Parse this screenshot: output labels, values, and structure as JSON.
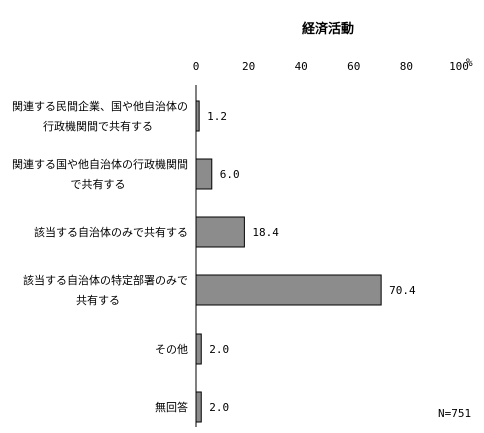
{
  "chart_data": {
    "type": "bar",
    "orientation": "horizontal",
    "title": "経済活動",
    "unit": "%",
    "xlim": [
      0,
      100
    ],
    "ticks": [
      0,
      20,
      40,
      60,
      80,
      100
    ],
    "categories": [
      [
        "関連する民間企業、国や他自治体の",
        "行政機関間で共有する"
      ],
      [
        "関連する国や他自治体の行政機関間",
        "で共有する"
      ],
      [
        "該当する自治体のみで共有する"
      ],
      [
        "該当する自治体の特定部署のみで",
        "共有する"
      ],
      [
        "その他"
      ],
      [
        "無回答"
      ]
    ],
    "values": [
      1.2,
      6.0,
      18.4,
      70.4,
      2.0,
      2.0
    ],
    "value_labels": [
      "1.2",
      "6.0",
      "18.4",
      "70.4",
      "2.0",
      "2.0"
    ],
    "bar_color": "#8c8c8c",
    "note": "N=751"
  }
}
